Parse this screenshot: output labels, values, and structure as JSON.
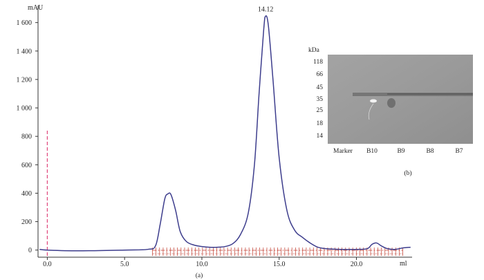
{
  "chart_data": [
    {
      "type": "line",
      "title": "",
      "ylabel": "mAU",
      "xlabel": "ml",
      "xlim": [
        -0.6,
        23.6
      ],
      "ylim": [
        -50,
        1720
      ],
      "x_ticks": [
        0.0,
        5.0,
        10.0,
        15.0,
        20.0
      ],
      "x_tick_labels": [
        "0.0",
        "5.0",
        "10.0",
        "15.0",
        "20.0"
      ],
      "y_ticks": [
        0,
        200,
        400,
        600,
        800,
        1000,
        1200,
        1400,
        1600
      ],
      "y_tick_labels": [
        "0",
        "200",
        "400",
        "600",
        "800",
        "1 000",
        "1 200",
        "1 400",
        "1 600"
      ],
      "injection_marker": {
        "x": 0.0,
        "y_top": 840
      },
      "peak_annotation": {
        "x": 14.12,
        "y": 1640,
        "label": "14.12"
      },
      "fraction_marks": {
        "start": 6.8,
        "end": 23.0
      },
      "series": [
        {
          "color": "#3c3c8c",
          "x": [
            -0.5,
            0.0,
            2.0,
            5.0,
            6.5,
            7.0,
            7.3,
            7.6,
            7.8,
            8.0,
            8.3,
            8.6,
            9.0,
            9.5,
            10.0,
            10.5,
            11.0,
            11.5,
            12.0,
            12.5,
            13.0,
            13.4,
            13.7,
            14.0,
            14.12,
            14.3,
            14.6,
            15.0,
            15.5,
            16.0,
            16.5,
            17.0,
            17.5,
            18.0,
            19.0,
            20.0,
            20.7,
            21.0,
            21.3,
            21.6,
            22.0,
            22.5,
            23.0,
            23.5
          ],
          "y": [
            5,
            0,
            -5,
            0,
            5,
            30,
            180,
            360,
            395,
            390,
            280,
            130,
            60,
            35,
            25,
            20,
            20,
            25,
            45,
            110,
            260,
            600,
            1100,
            1550,
            1645,
            1580,
            1200,
            650,
            280,
            140,
            90,
            50,
            20,
            10,
            5,
            5,
            10,
            40,
            50,
            30,
            10,
            5,
            15,
            20
          ]
        }
      ],
      "caption": "(a)"
    },
    {
      "type": "gel_image",
      "ylabel": "kDa",
      "ladder": [
        "118",
        "66",
        "45",
        "35",
        "25",
        "18",
        "14"
      ],
      "lanes": [
        "Marker",
        "B10",
        "B9",
        "B8",
        "B7"
      ],
      "caption": "(b)",
      "colors": {
        "background": "#9a9a9a",
        "band": "#5e5e5e"
      }
    }
  ]
}
